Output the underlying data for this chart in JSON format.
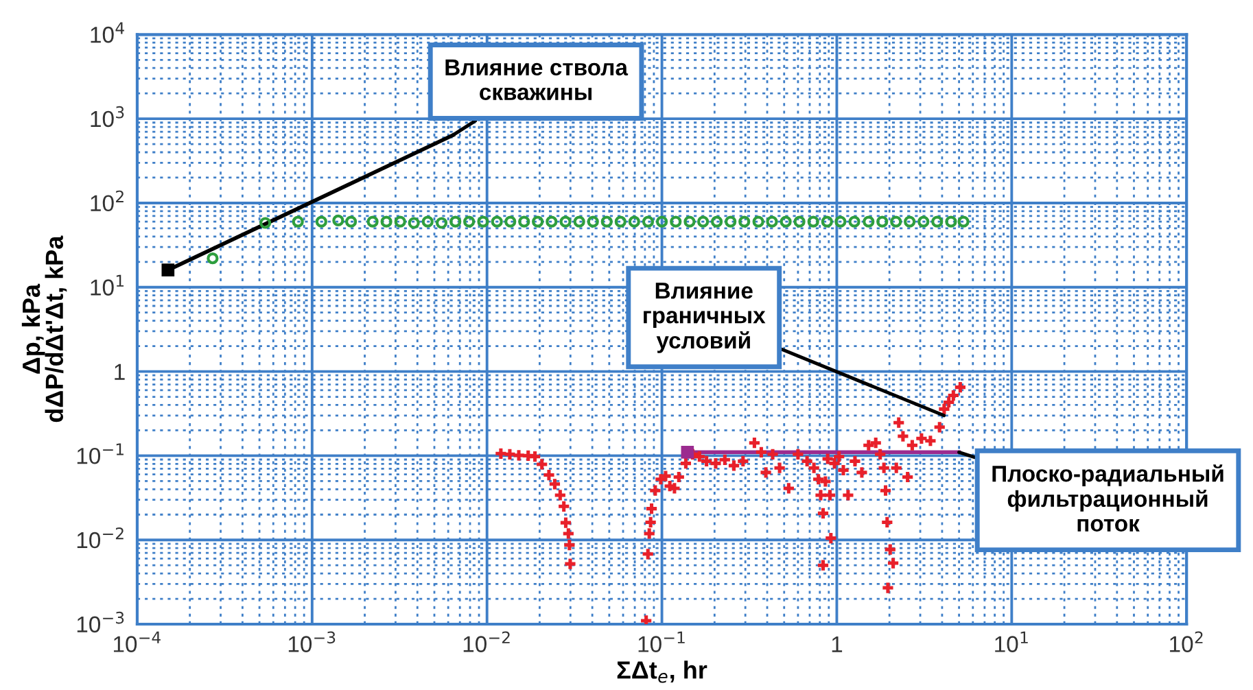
{
  "chart_data": {
    "type": "scatter",
    "log": "xy",
    "xlabel": "ΣΔt$_{e}$, hr",
    "ylabel": "Δp, kPa\ndΔP/dΔt'Δt, kPa",
    "xlim": [
      0.0001,
      100
    ],
    "ylim": [
      0.001,
      10000
    ],
    "xticks": [
      {
        "value": 0.0001,
        "label": "10$^{−4}$"
      },
      {
        "value": 0.001,
        "label": "10$^{−3}$"
      },
      {
        "value": 0.01,
        "label": "10$^{−2}$"
      },
      {
        "value": 0.1,
        "label": "10$^{−1}$"
      },
      1,
      {
        "value": 10,
        "label": "10$^{1}$"
      },
      {
        "value": 100,
        "label": "10$^{2}$"
      },
      {
        "value": 0.0002,
        "label": null
      },
      {
        "value": 0.0003,
        "label": null
      },
      {
        "value": 0.0004,
        "label": null
      },
      {
        "value": 0.0005,
        "label": null
      },
      {
        "value": 0.0006,
        "label": null
      },
      {
        "value": 0.0007,
        "label": null
      },
      {
        "value": 0.0008,
        "label": null
      },
      {
        "value": 0.0009,
        "label": null
      },
      {
        "value": 0.002,
        "label": null
      },
      {
        "value": 0.003,
        "label": null
      },
      {
        "value": 0.004,
        "label": null
      },
      {
        "value": 0.005,
        "label": null
      },
      {
        "value": 0.006,
        "label": null
      },
      {
        "value": 0.007,
        "label": null
      },
      {
        "value": 0.008,
        "label": null
      },
      {
        "value": 0.009,
        "label": null
      },
      {
        "value": 0.02,
        "label": null
      },
      {
        "value": 0.03,
        "label": null
      },
      {
        "value": 0.04,
        "label": null
      },
      {
        "value": 0.05,
        "label": null
      },
      {
        "value": 0.06,
        "label": null
      },
      {
        "value": 0.07,
        "label": null
      },
      {
        "value": 0.08,
        "label": null
      },
      {
        "value": 0.09,
        "label": null
      },
      {
        "value": 0.2,
        "label": null
      },
      {
        "value": 0.3,
        "label": null
      },
      {
        "value": 0.4,
        "label": null
      },
      {
        "value": 0.5,
        "label": null
      },
      {
        "value": 0.6,
        "label": null
      },
      {
        "value": 0.7,
        "label": null
      },
      {
        "value": 0.8,
        "label": null
      },
      {
        "value": 0.9,
        "label": null
      },
      {
        "value": 2,
        "label": null
      },
      {
        "value": 3,
        "label": null
      },
      {
        "value": 4,
        "label": null
      },
      {
        "value": 5,
        "label": null
      },
      {
        "value": 6,
        "label": null
      },
      {
        "value": 7,
        "label": null
      },
      {
        "value": 8,
        "label": null
      },
      {
        "value": 9,
        "label": null
      },
      {
        "value": 20,
        "label": null
      },
      {
        "value": 30,
        "label": null
      },
      {
        "value": 40,
        "label": null
      },
      {
        "value": 50,
        "label": null
      },
      {
        "value": 60,
        "label": null
      },
      {
        "value": 70,
        "label": null
      },
      {
        "value": 80,
        "label": null
      },
      {
        "value": 90,
        "label": null
      }
    ],
    "yticks": [
      {
        "value": 0.001,
        "label": "10$^{−3}$"
      },
      {
        "value": 0.01,
        "label": "10$^{−2}$"
      },
      {
        "value": 0.1,
        "label": "10$^{−1}$"
      },
      1,
      {
        "value": 10,
        "label": "10$^{1}$"
      },
      {
        "value": 100,
        "label": "10$^{2}$"
      },
      {
        "value": 1000,
        "label": "10$^{3}$"
      },
      {
        "value": 10000,
        "label": "10$^{4}$"
      },
      {
        "value": 0.002,
        "label": null
      },
      {
        "value": 0.003,
        "label": null
      },
      {
        "value": 0.004,
        "label": null
      },
      {
        "value": 0.005,
        "label": null
      },
      {
        "value": 0.006,
        "label": null
      },
      {
        "value": 0.007,
        "label": null
      },
      {
        "value": 0.008,
        "label": null
      },
      {
        "value": 0.009,
        "label": null
      },
      {
        "value": 0.02,
        "label": null
      },
      {
        "value": 0.03,
        "label": null
      },
      {
        "value": 0.04,
        "label": null
      },
      {
        "value": 0.05,
        "label": null
      },
      {
        "value": 0.06,
        "label": null
      },
      {
        "value": 0.07,
        "label": null
      },
      {
        "value": 0.08,
        "label": null
      },
      {
        "value": 0.09,
        "label": null
      },
      {
        "value": 0.2,
        "label": null
      },
      {
        "value": 0.3,
        "label": null
      },
      {
        "value": 0.4,
        "label": null
      },
      {
        "value": 0.5,
        "label": null
      },
      {
        "value": 0.6,
        "label": null
      },
      {
        "value": 0.7,
        "label": null
      },
      {
        "value": 0.8,
        "label": null
      },
      {
        "value": 0.9,
        "label": null
      },
      {
        "value": 2,
        "label": null
      },
      {
        "value": 3,
        "label": null
      },
      {
        "value": 4,
        "label": null
      },
      {
        "value": 5,
        "label": null
      },
      {
        "value": 6,
        "label": null
      },
      {
        "value": 7,
        "label": null
      },
      {
        "value": 8,
        "label": null
      },
      {
        "value": 9,
        "label": null
      },
      {
        "value": 20,
        "label": null
      },
      {
        "value": 30,
        "label": null
      },
      {
        "value": 40,
        "label": null
      },
      {
        "value": 50,
        "label": null
      },
      {
        "value": 60,
        "label": null
      },
      {
        "value": 70,
        "label": null
      },
      {
        "value": 80,
        "label": null
      },
      {
        "value": 90,
        "label": null
      },
      {
        "value": 200,
        "label": null
      },
      {
        "value": 300,
        "label": null
      },
      {
        "value": 400,
        "label": null
      },
      {
        "value": 500,
        "label": null
      },
      {
        "value": 600,
        "label": null
      },
      {
        "value": 700,
        "label": null
      },
      {
        "value": 800,
        "label": null
      },
      {
        "value": 900,
        "label": null
      },
      {
        "value": 2000,
        "label": null
      },
      {
        "value": 3000,
        "label": null
      },
      {
        "value": 4000,
        "label": null
      },
      {
        "value": 5000,
        "label": null
      },
      {
        "value": 6000,
        "label": null
      },
      {
        "value": 7000,
        "label": null
      },
      {
        "value": 8000,
        "label": null
      },
      {
        "value": 9000,
        "label": null
      }
    ],
    "grid": true,
    "series": [
      {
        "color": "#2e9e3e",
        "marker": "circle",
        "x": [
          0.00027,
          0.00054,
          0.00083,
          0.00113,
          0.00141,
          0.00167,
          0.00222,
          0.00266,
          0.00319,
          0.00382,
          0.00458,
          0.0055,
          0.0066,
          0.0079,
          0.0095,
          0.0114,
          0.0136,
          0.0163,
          0.0195,
          0.0234,
          0.0281,
          0.0337,
          0.0404,
          0.0484,
          0.058,
          0.0695,
          0.0834,
          0.1,
          0.12,
          0.144,
          0.172,
          0.206,
          0.247,
          0.296,
          0.356,
          0.426,
          0.511,
          0.612,
          0.734,
          0.88,
          1.05,
          1.26,
          1.52,
          1.82,
          2.18,
          2.61,
          3.13,
          3.75,
          4.5,
          5.3
        ],
        "values": [
          22,
          58,
          60,
          60,
          62,
          60,
          60,
          60,
          60,
          58,
          60,
          58,
          60,
          60,
          60,
          60,
          60,
          60,
          60,
          60,
          60,
          60,
          60,
          60,
          60,
          60,
          60,
          60,
          60,
          60,
          60,
          60,
          60,
          60,
          60,
          60,
          60,
          60,
          60,
          60,
          60,
          60,
          60,
          60,
          60,
          60,
          60,
          60,
          60,
          60
        ]
      },
      {
        "color": "#e8202a",
        "marker": "cross",
        "x": [
          0.012,
          0.0135,
          0.0152,
          0.0172,
          0.0188,
          0.0206,
          0.0226,
          0.0244,
          0.0262,
          0.0275,
          0.0282,
          0.0292,
          0.0296,
          0.0299,
          0.0813,
          0.0832,
          0.0847,
          0.0862,
          0.0873,
          0.0916,
          0.0985,
          0.105,
          0.111,
          0.118,
          0.125,
          0.137,
          0.15,
          0.164,
          0.18,
          0.203,
          0.229,
          0.258,
          0.291,
          0.338,
          0.37,
          0.393,
          0.43,
          0.471,
          0.531,
          0.6,
          0.676,
          0.74,
          0.785,
          0.809,
          0.835,
          0.835,
          0.861,
          0.887,
          0.914,
          0.925,
          0.97,
          1.03,
          1.09,
          1.16,
          1.27,
          1.39,
          1.52,
          1.67,
          1.77,
          1.86,
          1.9,
          1.94,
          1.96,
          2.02,
          2.1,
          2.19,
          2.26,
          2.39,
          2.54,
          2.7,
          3.05,
          3.43,
          3.87,
          4.11,
          4.37,
          4.64,
          5.08
        ],
        "values": [
          0.106,
          0.104,
          0.101,
          0.1,
          0.0976,
          0.079,
          0.059,
          0.046,
          0.034,
          0.025,
          0.016,
          0.0119,
          0.0087,
          0.0052,
          0.0011,
          0.0068,
          0.0119,
          0.0162,
          0.0235,
          0.0386,
          0.0525,
          0.0573,
          0.0436,
          0.041,
          0.0558,
          0.081,
          0.104,
          0.0976,
          0.0861,
          0.081,
          0.0895,
          0.0762,
          0.0861,
          0.142,
          0.11,
          0.0632,
          0.104,
          0.0716,
          0.041,
          0.104,
          0.0861,
          0.0716,
          0.0525,
          0.034,
          0.0207,
          0.005,
          0.0494,
          0.0917,
          0.034,
          0.0105,
          0.081,
          0.0976,
          0.0673,
          0.034,
          0.0861,
          0.0632,
          0.133,
          0.142,
          0.104,
          0.0716,
          0.0386,
          0.0162,
          0.0027,
          0.0077,
          0.0053,
          0.0716,
          0.247,
          0.17,
          0.0558,
          0.133,
          0.16,
          0.15,
          0.218,
          0.358,
          0.431,
          0.519,
          0.649
        ]
      },
      {
        "type": "line",
        "color": "#000000",
        "x": [
          0.00015,
          0.0064
        ],
        "values": [
          16,
          640
        ]
      },
      {
        "color": "#000000",
        "marker": "square",
        "x": [
          0.00015
        ],
        "values": [
          16
        ]
      },
      {
        "type": "line",
        "color": "#9b2b8f",
        "x": [
          0.14,
          5
        ],
        "values": [
          0.11,
          0.11
        ]
      },
      {
        "color": "#9b2b8f",
        "marker": "square",
        "x": [
          0.14
        ],
        "values": [
          0.11
        ]
      }
    ],
    "annotations": [
      {
        "text": "Влияние ствола\nскважины",
        "x": 0.0064,
        "y": 640
      },
      {
        "text": "Влияние\nграничных\nусловий",
        "x": 4.1,
        "y": 0.3
      },
      {
        "text": "Плоско-радиальный\nфильтрационный\nпоток",
        "x": 5,
        "y": 0.11
      }
    ]
  }
}
